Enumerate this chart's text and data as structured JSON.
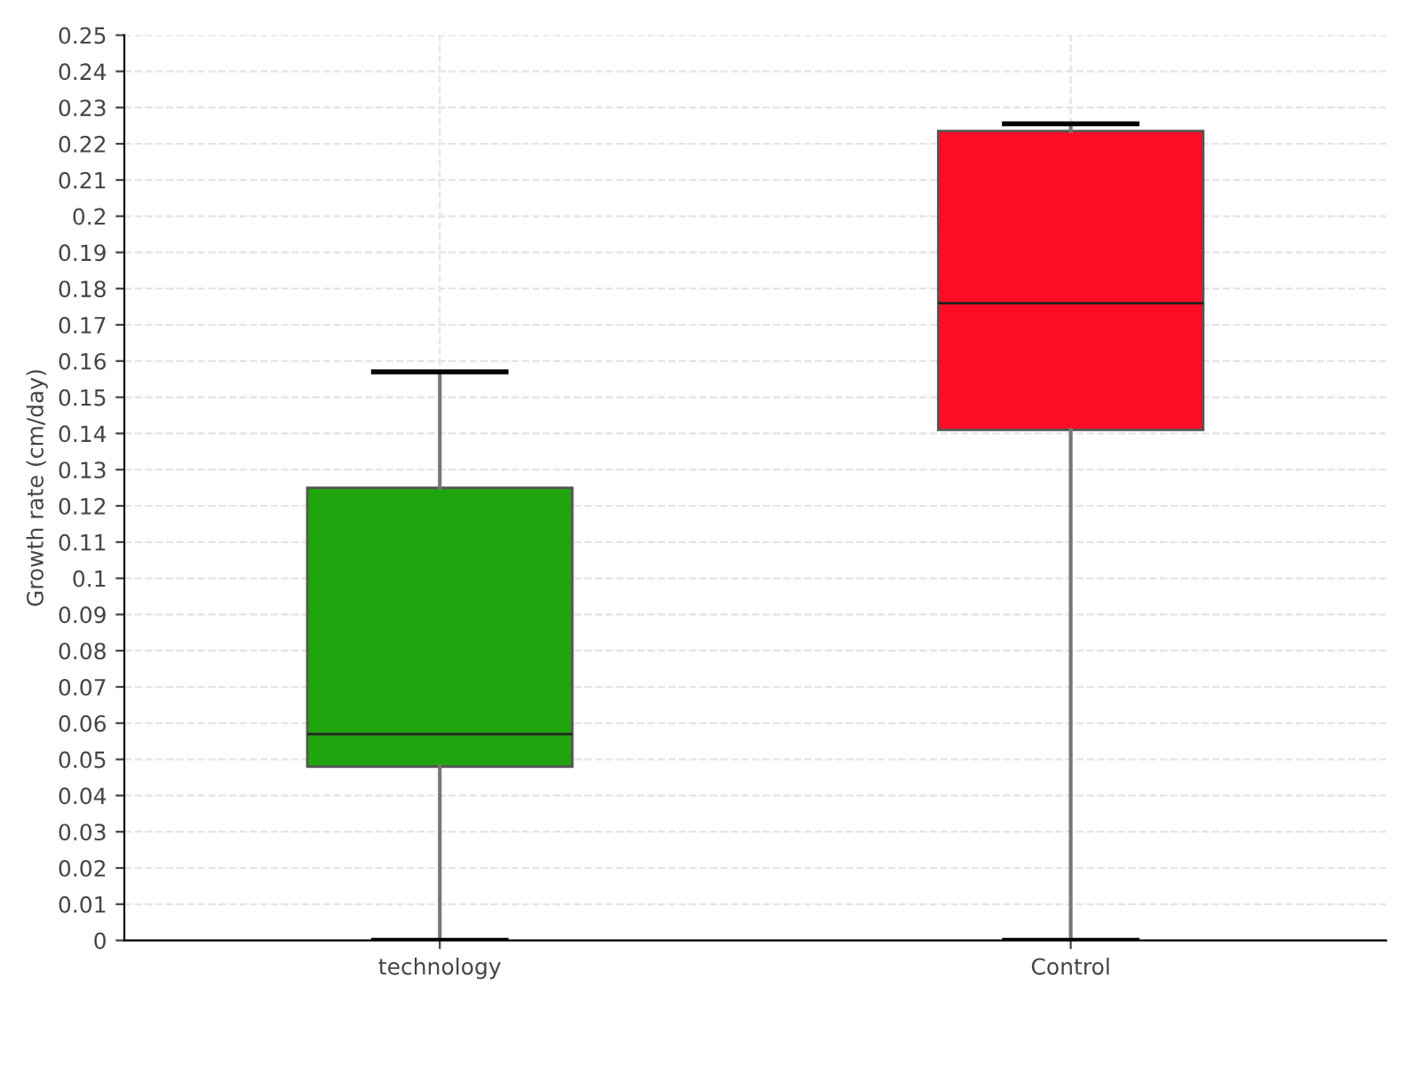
{
  "chart_data": {
    "type": "box",
    "ylabel": "Growth rate (cm/day)",
    "categories": [
      "technology",
      "Control"
    ],
    "colors": [
      "#21a50e",
      "#ff0c25"
    ],
    "boxes": [
      {
        "low": 0,
        "q1": 0.048,
        "median": 0.057,
        "q3": 0.125,
        "high": 0.157
      },
      {
        "low": 0,
        "q1": 0.141,
        "median": 0.176,
        "q3": 0.2235,
        "high": 0.2255
      }
    ],
    "ylim": [
      0,
      0.25
    ],
    "yticks": [
      0,
      0.01,
      0.02,
      0.03,
      0.04,
      0.05,
      0.06,
      0.07,
      0.08,
      0.09,
      0.1,
      0.11,
      0.12,
      0.13,
      0.14,
      0.15,
      0.16,
      0.17,
      0.18,
      0.19,
      0.2,
      0.21,
      0.22,
      0.23,
      0.24,
      0.25
    ],
    "grid": true
  }
}
